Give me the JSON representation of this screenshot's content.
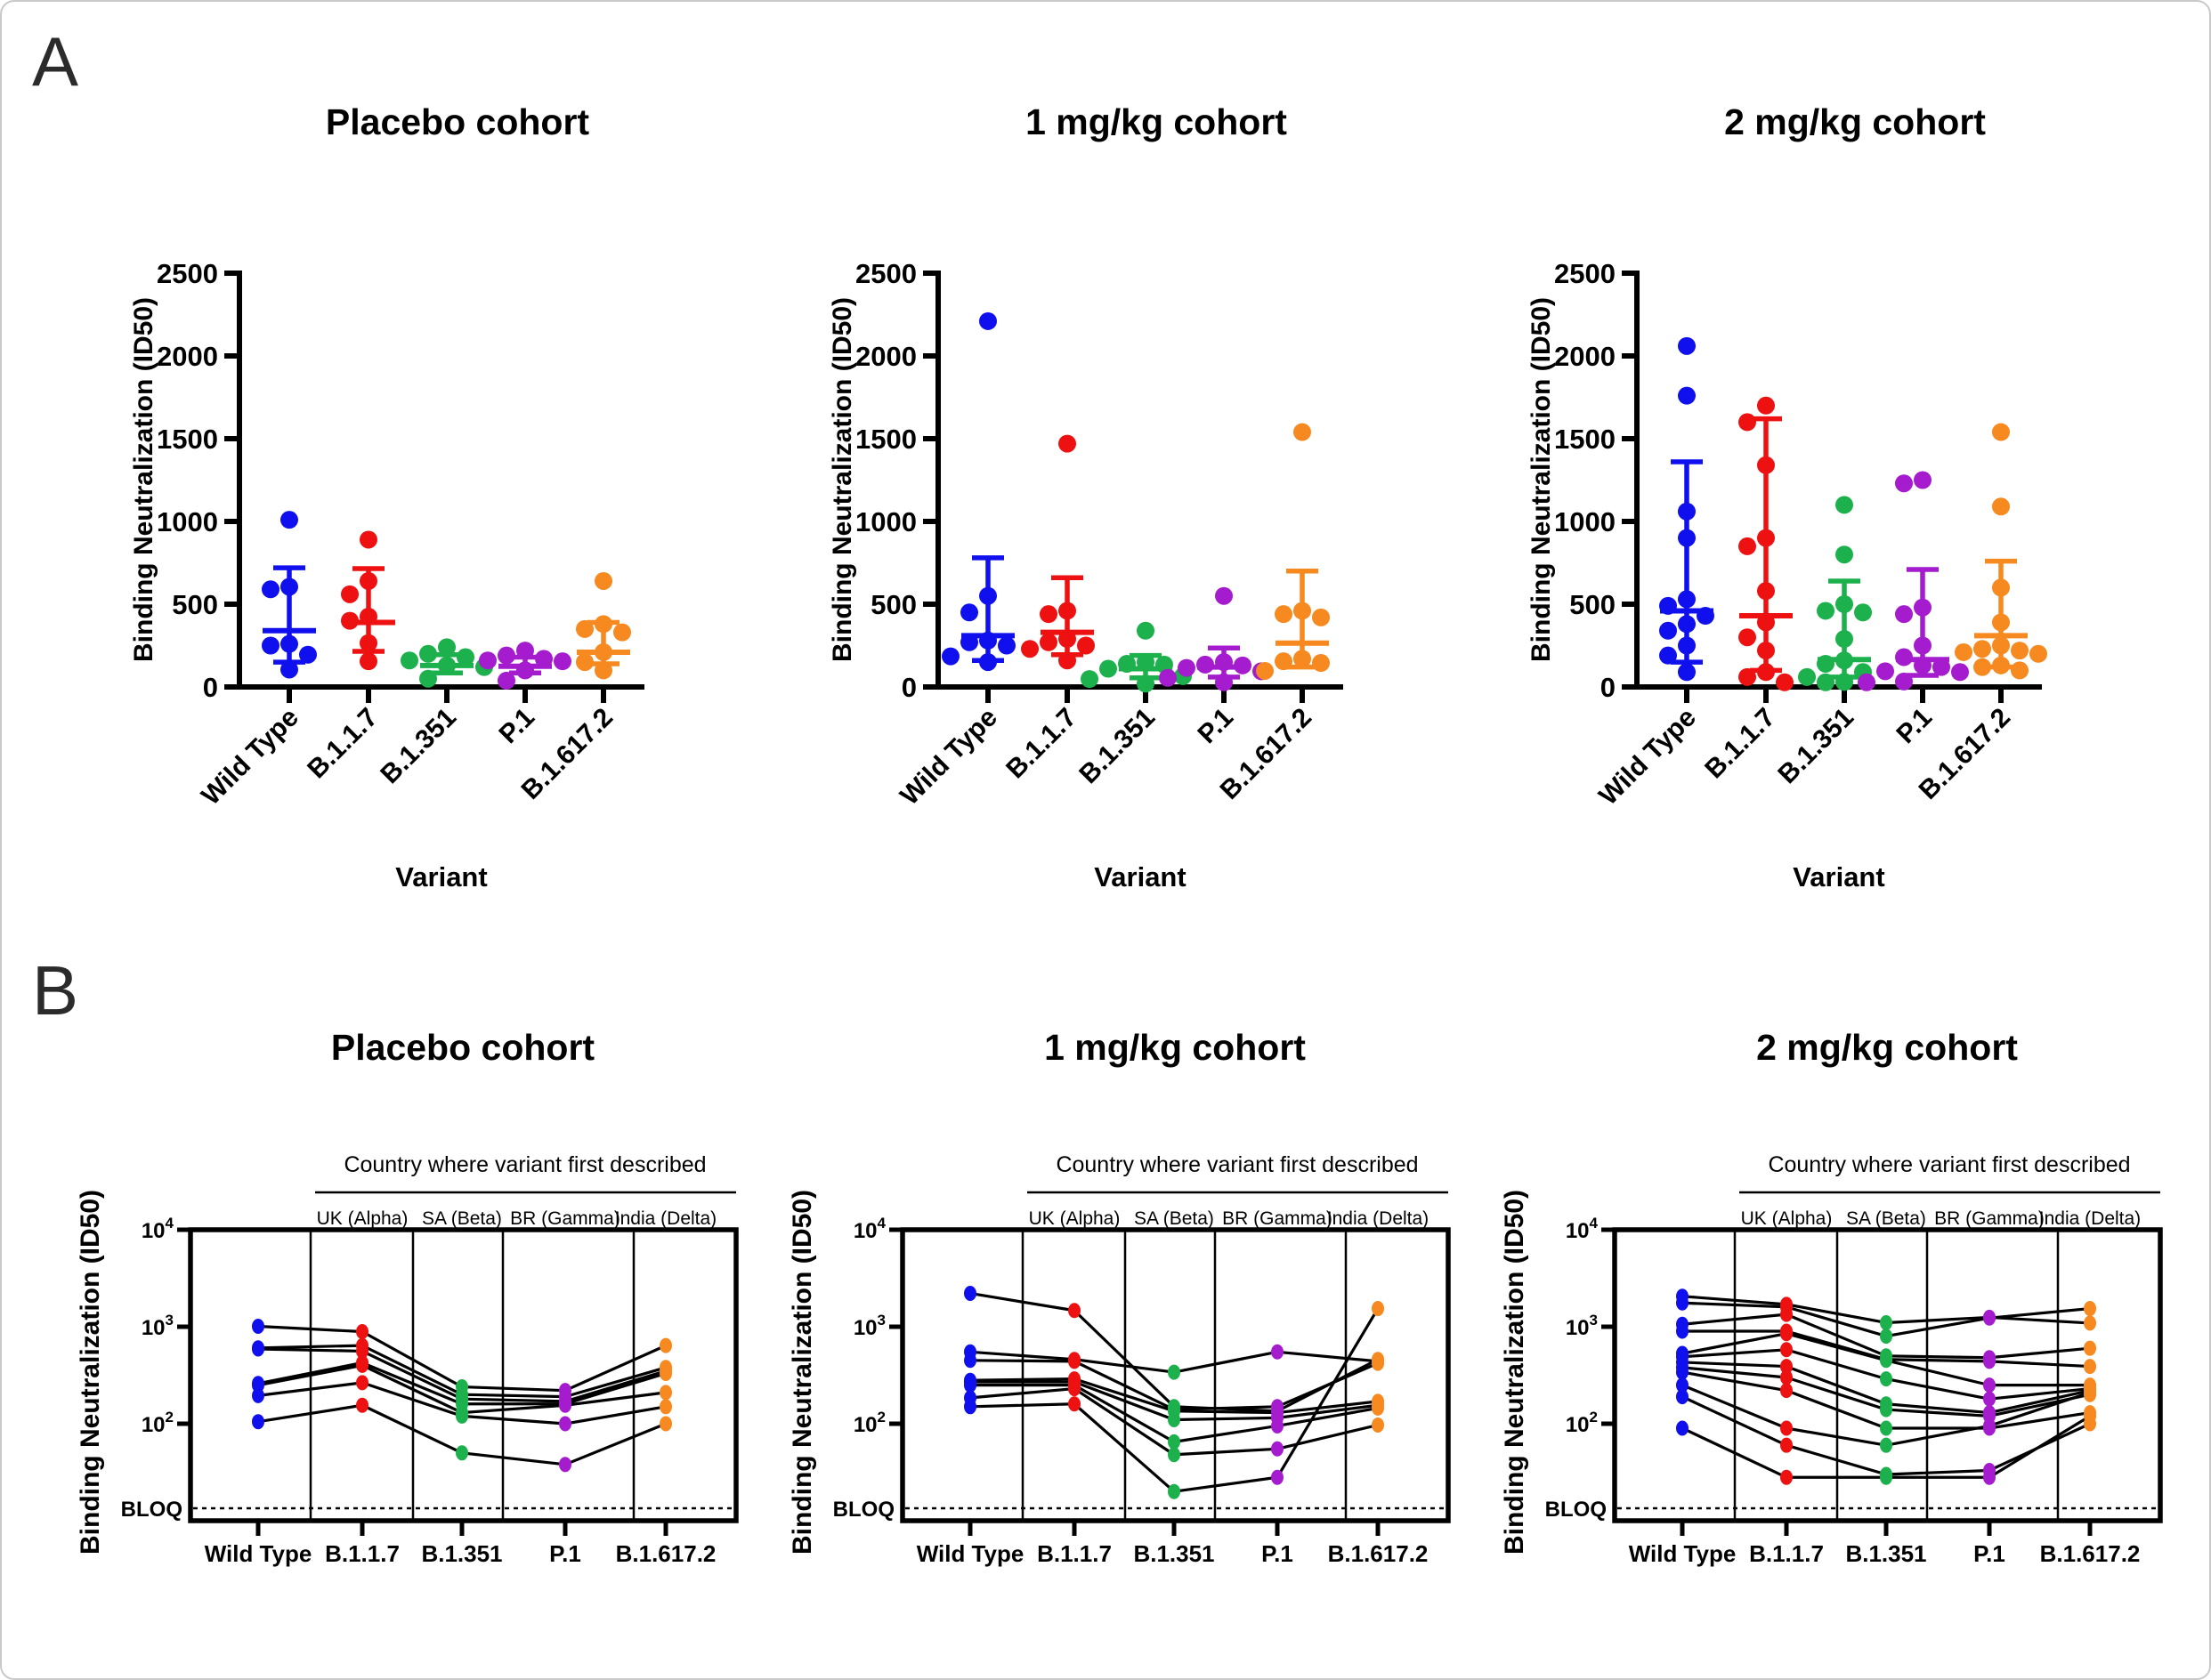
{
  "labels": {
    "panel_a": "A",
    "panel_b": "B",
    "ylabel": "Binding Neutralization (ID50)",
    "xlabel": "Variant",
    "bracket": "Country where variant first described",
    "bloq": "BLOQ"
  },
  "variants": [
    "Wild Type",
    "B.1.1.7",
    "B.1.351",
    "P.1",
    "B.1.617.2"
  ],
  "colors": {
    "variant_colors": [
      "#1010EE",
      "#EE1111",
      "#1CB14C",
      "#A41CCD",
      "#F6891F"
    ],
    "line": "#000000",
    "axis": "#000000",
    "panel_label": "#2b2b2b"
  },
  "chart_data": [
    {
      "id": "A-placebo",
      "panel": "A",
      "type": "scatter",
      "title": "Placebo cohort",
      "ylabel": "Binding Neutralization (ID50)",
      "xlabel": "Variant",
      "ylim": [
        0,
        2500
      ],
      "yticks": [
        0,
        500,
        1000,
        1500,
        2000,
        2500
      ],
      "categories": [
        "Wild Type",
        "B.1.1.7",
        "B.1.351",
        "P.1",
        "B.1.617.2"
      ],
      "series": [
        [
          1010,
          605,
          590,
          260,
          250,
          195,
          105
        ],
        [
          890,
          640,
          560,
          425,
          400,
          265,
          155
        ],
        [
          240,
          200,
          180,
          160,
          130,
          120,
          50
        ],
        [
          220,
          190,
          170,
          160,
          155,
          100,
          38
        ],
        [
          640,
          380,
          350,
          330,
          210,
          150,
          100
        ]
      ],
      "summary": [
        {
          "median": 340,
          "lo": 150,
          "hi": 720
        },
        {
          "median": 390,
          "lo": 215,
          "hi": 715
        },
        {
          "median": 130,
          "lo": 85,
          "hi": 195
        },
        {
          "median": 125,
          "lo": 85,
          "hi": 180
        },
        {
          "median": 210,
          "lo": 140,
          "hi": 390
        }
      ]
    },
    {
      "id": "A-1mgkg",
      "panel": "A",
      "type": "scatter",
      "title": "1 mg/kg cohort",
      "ylabel": "Binding Neutralization (ID50)",
      "xlabel": "Variant",
      "ylim": [
        0,
        2500
      ],
      "yticks": [
        0,
        500,
        1000,
        1500,
        2000,
        2500
      ],
      "categories": [
        "Wild Type",
        "B.1.1.7",
        "B.1.351",
        "P.1",
        "B.1.617.2"
      ],
      "series": [
        [
          2210,
          550,
          450,
          280,
          270,
          250,
          185,
          150
        ],
        [
          1470,
          460,
          440,
          290,
          270,
          250,
          230,
          160
        ],
        [
          340,
          150,
          140,
          135,
          110,
          65,
          48,
          20
        ],
        [
          550,
          150,
          135,
          130,
          115,
          95,
          55,
          28
        ],
        [
          1540,
          460,
          440,
          420,
          170,
          155,
          145,
          97
        ]
      ],
      "summary": [
        {
          "median": 310,
          "lo": 160,
          "hi": 780
        },
        {
          "median": 330,
          "lo": 195,
          "hi": 660
        },
        {
          "median": 110,
          "lo": 55,
          "hi": 190
        },
        {
          "median": 120,
          "lo": 60,
          "hi": 235
        },
        {
          "median": 265,
          "lo": 120,
          "hi": 700
        }
      ]
    },
    {
      "id": "A-2mgkg",
      "panel": "A",
      "type": "scatter",
      "title": "2 mg/kg cohort",
      "ylabel": "Binding Neutralization (ID50)",
      "xlabel": "Variant",
      "ylim": [
        0,
        2500
      ],
      "yticks": [
        0,
        500,
        1000,
        1500,
        2000,
        2500
      ],
      "categories": [
        "Wild Type",
        "B.1.1.7",
        "B.1.351",
        "P.1",
        "B.1.617.2"
      ],
      "series": [
        [
          2060,
          1760,
          1060,
          900,
          530,
          490,
          430,
          380,
          340,
          250,
          190,
          90
        ],
        [
          1700,
          1600,
          1340,
          900,
          850,
          580,
          390,
          300,
          220,
          90,
          60,
          28
        ],
        [
          1100,
          800,
          500,
          460,
          450,
          290,
          160,
          140,
          90,
          60,
          30,
          28
        ],
        [
          1250,
          1230,
          480,
          440,
          250,
          180,
          130,
          120,
          95,
          90,
          33,
          28
        ],
        [
          1090,
          1540,
          600,
          390,
          250,
          230,
          220,
          200,
          210,
          130,
          120,
          100
        ]
      ],
      "summary": [
        {
          "median": 460,
          "lo": 150,
          "hi": 1360
        },
        {
          "median": 430,
          "lo": 100,
          "hi": 1620
        },
        {
          "median": 165,
          "lo": 60,
          "hi": 640
        },
        {
          "median": 165,
          "lo": 70,
          "hi": 710
        },
        {
          "median": 310,
          "lo": 120,
          "hi": 760
        }
      ]
    },
    {
      "id": "B-placebo",
      "panel": "B",
      "type": "line",
      "title": "Placebo cohort",
      "ylabel": "Binding Neutralization (ID50)",
      "yscale": "log",
      "ytick_exponents": [
        4,
        3,
        2
      ],
      "bloq_label": "BLOQ",
      "bracket_label": "Country where variant first described",
      "country_labels": [
        "UK (Alpha)",
        "SA (Beta)",
        "BR (Gamma)",
        "India (Delta)"
      ],
      "categories": [
        "Wild Type",
        "B.1.1.7",
        "B.1.351",
        "P.1",
        "B.1.617.2"
      ],
      "subjects": [
        [
          1010,
          890,
          240,
          220,
          640
        ],
        [
          605,
          640,
          200,
          190,
          380
        ],
        [
          590,
          560,
          180,
          170,
          350
        ],
        [
          260,
          425,
          160,
          160,
          330
        ],
        [
          250,
          400,
          130,
          155,
          210
        ],
        [
          195,
          265,
          120,
          100,
          150
        ],
        [
          105,
          155,
          50,
          38,
          100
        ]
      ]
    },
    {
      "id": "B-1mgkg",
      "panel": "B",
      "type": "line",
      "title": "1 mg/kg cohort",
      "ylabel": "Binding Neutralization (ID50)",
      "yscale": "log",
      "ytick_exponents": [
        4,
        3,
        2
      ],
      "bloq_label": "BLOQ",
      "bracket_label": "Country where variant first described",
      "country_labels": [
        "UK (Alpha)",
        "SA (Beta)",
        "BR (Gamma)",
        "India (Delta)"
      ],
      "categories": [
        "Wild Type",
        "B.1.1.7",
        "B.1.351",
        "P.1",
        "B.1.617.2"
      ],
      "subjects": [
        [
          2210,
          1470,
          150,
          135,
          460
        ],
        [
          550,
          460,
          340,
          550,
          440
        ],
        [
          450,
          440,
          140,
          150,
          420
        ],
        [
          280,
          290,
          135,
          130,
          170
        ],
        [
          270,
          270,
          110,
          115,
          155
        ],
        [
          250,
          250,
          65,
          95,
          145
        ],
        [
          185,
          230,
          48,
          55,
          97
        ],
        [
          150,
          160,
          20,
          28,
          1540
        ]
      ]
    },
    {
      "id": "B-2mgkg",
      "panel": "B",
      "type": "line",
      "title": "2 mg/kg cohort",
      "ylabel": "Binding Neutralization (ID50)",
      "yscale": "log",
      "ytick_exponents": [
        4,
        3,
        2
      ],
      "bloq_label": "BLOQ",
      "bracket_label": "Country where variant first described",
      "country_labels": [
        "UK (Alpha)",
        "SA (Beta)",
        "BR (Gamma)",
        "India (Delta)"
      ],
      "categories": [
        "Wild Type",
        "B.1.1.7",
        "B.1.351",
        "P.1",
        "B.1.617.2"
      ],
      "subjects": [
        [
          2060,
          1700,
          1100,
          1250,
          1090
        ],
        [
          1760,
          1600,
          800,
          1230,
          1540
        ],
        [
          1060,
          1340,
          500,
          480,
          600
        ],
        [
          900,
          900,
          460,
          440,
          390
        ],
        [
          530,
          850,
          450,
          250,
          250
        ],
        [
          490,
          580,
          290,
          180,
          230
        ],
        [
          430,
          390,
          160,
          130,
          220
        ],
        [
          380,
          300,
          140,
          120,
          200
        ],
        [
          340,
          220,
          90,
          90,
          130
        ],
        [
          250,
          90,
          60,
          95,
          210
        ],
        [
          190,
          60,
          30,
          33,
          100
        ],
        [
          90,
          28,
          28,
          28,
          120
        ]
      ]
    }
  ]
}
